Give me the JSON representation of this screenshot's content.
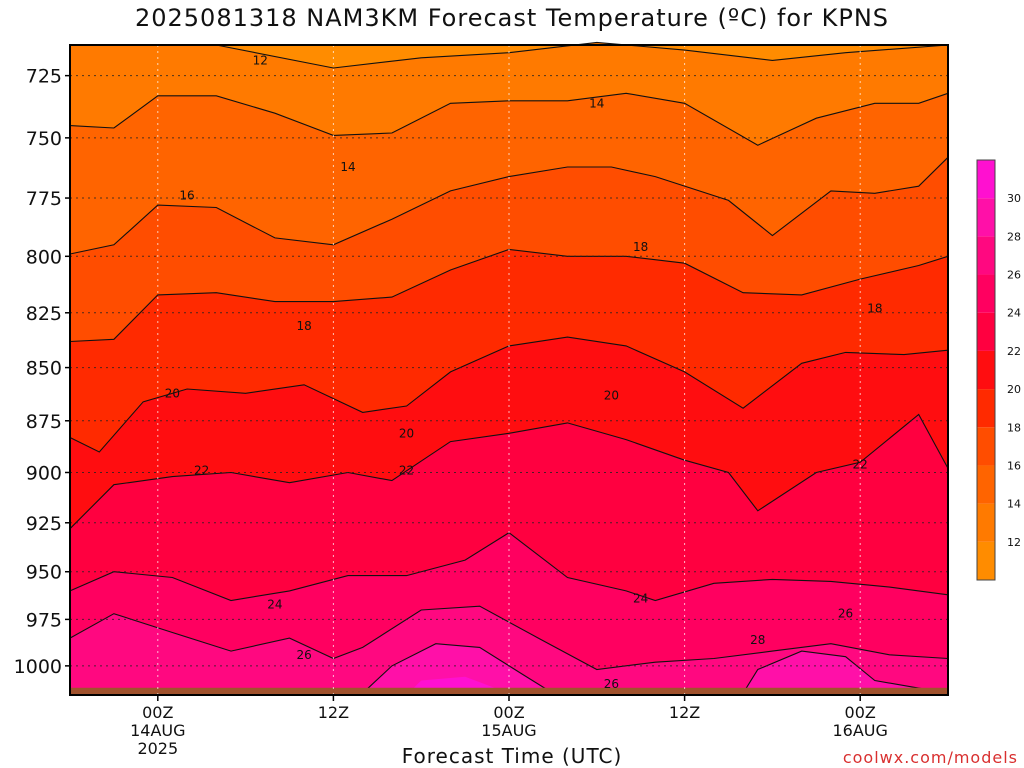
{
  "title": "2025081318 NAM3KM Forecast Temperature (ºC) for KPNS",
  "credit": "coolwx.com/models",
  "chart_data": {
    "type": "heatmap",
    "title": "2025081318 NAM3KM Forecast Temperature (ºC) for KPNS",
    "xlabel": "Forecast Time (UTC)",
    "ylabel": "",
    "y_scale": "log",
    "y_inverted": true,
    "y_ticks": [
      725,
      750,
      775,
      800,
      825,
      850,
      875,
      900,
      925,
      950,
      975,
      1000
    ],
    "ylim": [
      1016,
      713
    ],
    "x_ticks": [
      {
        "hour": 6,
        "lines": [
          "00Z",
          "14AUG",
          "2025"
        ]
      },
      {
        "hour": 18,
        "lines": [
          "12Z",
          "",
          ""
        ]
      },
      {
        "hour": 30,
        "lines": [
          "00Z",
          "15AUG",
          ""
        ]
      },
      {
        "hour": 42,
        "lines": [
          "12Z",
          "",
          ""
        ]
      },
      {
        "hour": 54,
        "lines": [
          "00Z",
          "16AUG",
          ""
        ]
      }
    ],
    "xlim": [
      0,
      60
    ],
    "grid": true,
    "colorbar": {
      "labels": [
        12,
        14,
        16,
        18,
        20,
        22,
        24,
        26,
        28,
        30
      ],
      "levels": [
        10,
        12,
        14,
        16,
        18,
        20,
        22,
        24,
        26,
        28,
        30,
        32
      ],
      "colors": [
        "#ff8c00",
        "#ff7a00",
        "#ff6400",
        "#ff4d00",
        "#ff2a00",
        "#ff0d10",
        "#ff0040",
        "#ff0060",
        "#ff0880",
        "#ff10a8",
        "#ff10d0"
      ]
    },
    "ground_pressure": 1012,
    "bands": [
      {
        "temp_min": 10,
        "temp_max": 12,
        "boundary_top": 713
      },
      {
        "temp_min": 12,
        "temp_max": 14,
        "boundary_top": [
          [
            0,
            713
          ],
          [
            3,
            713
          ],
          [
            10,
            713
          ],
          [
            18,
            722
          ],
          [
            24,
            718
          ],
          [
            30,
            716
          ],
          [
            36,
            712
          ],
          [
            42,
            715
          ],
          [
            48,
            719
          ],
          [
            53,
            716
          ],
          [
            60,
            713
          ]
        ]
      },
      {
        "temp_min": 14,
        "temp_max": 16,
        "boundary_top": [
          [
            0,
            745
          ],
          [
            3,
            746
          ],
          [
            6,
            733
          ],
          [
            10,
            733
          ],
          [
            14,
            740
          ],
          [
            18,
            749
          ],
          [
            22,
            748
          ],
          [
            26,
            736
          ],
          [
            30,
            735
          ],
          [
            34,
            735
          ],
          [
            38,
            732
          ],
          [
            42,
            736
          ],
          [
            47,
            753
          ],
          [
            51,
            742
          ],
          [
            55,
            736
          ],
          [
            58,
            736
          ],
          [
            60,
            732
          ]
        ]
      },
      {
        "temp_min": 16,
        "temp_max": 18,
        "boundary_top": [
          [
            0,
            799
          ],
          [
            3,
            795
          ],
          [
            6,
            778
          ],
          [
            10,
            779
          ],
          [
            14,
            792
          ],
          [
            18,
            795
          ],
          [
            22,
            784
          ],
          [
            26,
            772
          ],
          [
            30,
            766
          ],
          [
            34,
            762
          ],
          [
            37,
            762
          ],
          [
            40,
            766
          ],
          [
            45,
            776
          ],
          [
            48,
            791
          ],
          [
            52,
            772
          ],
          [
            55,
            773
          ],
          [
            58,
            770
          ],
          [
            60,
            758
          ]
        ]
      },
      {
        "temp_min": 18,
        "temp_max": 20,
        "boundary_top": [
          [
            0,
            838
          ],
          [
            3,
            837
          ],
          [
            6,
            817
          ],
          [
            10,
            816
          ],
          [
            14,
            820
          ],
          [
            18,
            820
          ],
          [
            22,
            818
          ],
          [
            26,
            806
          ],
          [
            30,
            797
          ],
          [
            34,
            800
          ],
          [
            38,
            800
          ],
          [
            42,
            803
          ],
          [
            46,
            816
          ],
          [
            50,
            817
          ],
          [
            54,
            810
          ],
          [
            58,
            804
          ],
          [
            60,
            800
          ]
        ]
      },
      {
        "temp_min": 20,
        "temp_max": 22,
        "boundary_top": [
          [
            0,
            883
          ],
          [
            2,
            890
          ],
          [
            5,
            866
          ],
          [
            8,
            860
          ],
          [
            12,
            862
          ],
          [
            16,
            858
          ],
          [
            20,
            871
          ],
          [
            23,
            868
          ],
          [
            26,
            852
          ],
          [
            30,
            840
          ],
          [
            34,
            836
          ],
          [
            38,
            840
          ],
          [
            42,
            852
          ],
          [
            46,
            869
          ],
          [
            50,
            848
          ],
          [
            53,
            843
          ],
          [
            57,
            844
          ],
          [
            60,
            842
          ]
        ]
      },
      {
        "temp_min": 22,
        "temp_max": 24,
        "boundary_top": [
          [
            0,
            928
          ],
          [
            3,
            906
          ],
          [
            7,
            902
          ],
          [
            11,
            900
          ],
          [
            15,
            905
          ],
          [
            19,
            900
          ],
          [
            22,
            904
          ],
          [
            26,
            885
          ],
          [
            30,
            881
          ],
          [
            34,
            876
          ],
          [
            38,
            884
          ],
          [
            42,
            894
          ],
          [
            45,
            900
          ],
          [
            47,
            919
          ],
          [
            51,
            900
          ],
          [
            54,
            895
          ],
          [
            58,
            872
          ],
          [
            60,
            898
          ]
        ]
      },
      {
        "temp_min": 24,
        "temp_max": 26,
        "boundary_top": [
          [
            0,
            960
          ],
          [
            3,
            950
          ],
          [
            7,
            953
          ],
          [
            11,
            965
          ],
          [
            15,
            960
          ],
          [
            19,
            952
          ],
          [
            23,
            952
          ],
          [
            27,
            944
          ],
          [
            30,
            930
          ],
          [
            34,
            953
          ],
          [
            38,
            960
          ],
          [
            40,
            965
          ],
          [
            44,
            956
          ],
          [
            48,
            954
          ],
          [
            52,
            955
          ],
          [
            56,
            958
          ],
          [
            60,
            962
          ]
        ]
      },
      {
        "temp_min": 26,
        "temp_max": 28,
        "boundary_top": [
          [
            0,
            985
          ],
          [
            3,
            972
          ],
          [
            7,
            982
          ],
          [
            11,
            992
          ],
          [
            15,
            985
          ],
          [
            18,
            996
          ],
          [
            20,
            990
          ],
          [
            24,
            970
          ],
          [
            28,
            968
          ],
          [
            32,
            985
          ],
          [
            36,
            1002
          ],
          [
            40,
            998
          ],
          [
            44,
            996
          ],
          [
            48,
            992
          ],
          [
            52,
            988
          ],
          [
            56,
            994
          ],
          [
            60,
            996
          ]
        ]
      },
      {
        "temp_min": 28,
        "temp_max": 30,
        "boundary_top": [
          [
            0,
            1015
          ],
          [
            20,
            1015
          ],
          [
            22,
            1000
          ],
          [
            25,
            988
          ],
          [
            28,
            990
          ],
          [
            31,
            1005
          ],
          [
            33,
            1015
          ],
          [
            46,
            1015
          ],
          [
            47,
            1002
          ],
          [
            50,
            992
          ],
          [
            53,
            995
          ],
          [
            55,
            1008
          ],
          [
            60,
            1015
          ]
        ]
      },
      {
        "temp_min": 30,
        "temp_max": 32,
        "boundary_top": [
          [
            0,
            1016
          ],
          [
            23,
            1016
          ],
          [
            24,
            1008
          ],
          [
            27,
            1006
          ],
          [
            29,
            1012
          ],
          [
            30,
            1016
          ],
          [
            60,
            1016
          ]
        ]
      }
    ],
    "contour_labels": [
      {
        "text": "12",
        "hour": 13,
        "p": 719
      },
      {
        "text": "14",
        "hour": 36,
        "p": 736
      },
      {
        "text": "14",
        "hour": 19,
        "p": 762
      },
      {
        "text": "16",
        "hour": 8,
        "p": 774
      },
      {
        "text": "18",
        "hour": 39,
        "p": 796
      },
      {
        "text": "18",
        "hour": 55,
        "p": 823
      },
      {
        "text": "18",
        "hour": 16,
        "p": 831
      },
      {
        "text": "20",
        "hour": 7,
        "p": 862
      },
      {
        "text": "20",
        "hour": 37,
        "p": 863
      },
      {
        "text": "20",
        "hour": 23,
        "p": 881
      },
      {
        "text": "22",
        "hour": 9,
        "p": 899
      },
      {
        "text": "22",
        "hour": 23,
        "p": 899
      },
      {
        "text": "22",
        "hour": 54,
        "p": 896
      },
      {
        "text": "24",
        "hour": 14,
        "p": 967
      },
      {
        "text": "24",
        "hour": 39,
        "p": 964
      },
      {
        "text": "26",
        "hour": 53,
        "p": 972
      },
      {
        "text": "26",
        "hour": 16,
        "p": 994
      },
      {
        "text": "28",
        "hour": 47,
        "p": 986
      },
      {
        "text": "26",
        "hour": 37,
        "p": 1010
      }
    ]
  }
}
